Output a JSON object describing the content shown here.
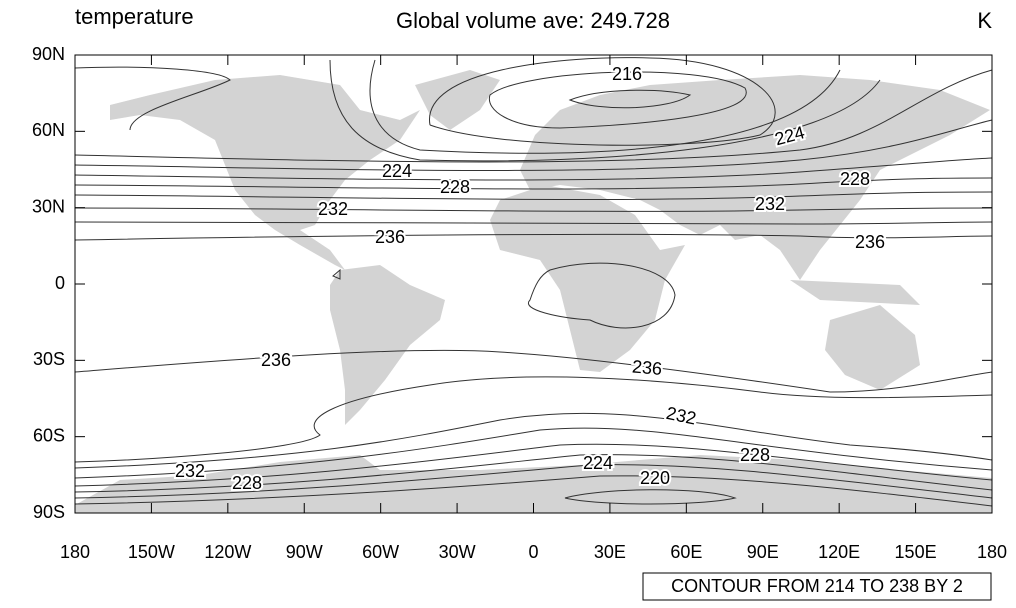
{
  "header": {
    "left": "temperature",
    "center": "Global volume ave: 249.728",
    "right": "K"
  },
  "map": {
    "xlim": [
      -180,
      180
    ],
    "ylim": [
      -90,
      90
    ],
    "xticks": [
      {
        "value": -180,
        "label": "180"
      },
      {
        "value": -150,
        "label": "150W"
      },
      {
        "value": -120,
        "label": "120W"
      },
      {
        "value": -90,
        "label": "90W"
      },
      {
        "value": -60,
        "label": "60W"
      },
      {
        "value": -30,
        "label": "30W"
      },
      0,
      {
        "value": 30,
        "label": "30E"
      },
      {
        "value": 60,
        "label": "60E"
      },
      {
        "value": 90,
        "label": "90E"
      },
      {
        "value": 120,
        "label": "120E"
      },
      {
        "value": 150,
        "label": "150E"
      },
      180
    ],
    "yticks": [
      {
        "value": 90,
        "label": "90N"
      },
      {
        "value": 60,
        "label": "60N"
      },
      {
        "value": 30,
        "label": "30N"
      },
      0,
      {
        "value": -30,
        "label": "30S"
      },
      {
        "value": -60,
        "label": "60S"
      },
      {
        "value": -90,
        "label": "90S"
      }
    ],
    "contour_labels": [
      216,
      224,
      224,
      228,
      232,
      236,
      228,
      232,
      236,
      236,
      236,
      232,
      228,
      224,
      220,
      232,
      228
    ]
  },
  "footer": "CONTOUR FROM 214 TO 238 BY 2"
}
